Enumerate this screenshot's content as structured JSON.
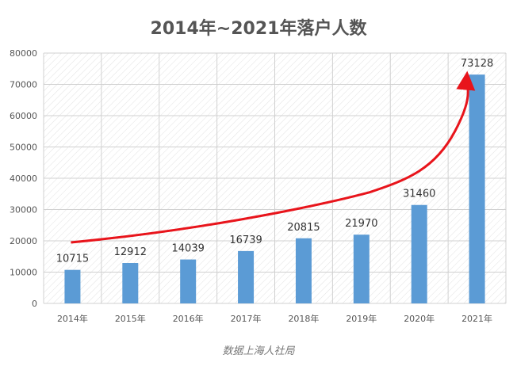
{
  "chart_data": {
    "type": "bar",
    "title": "2014年~2021年落户人数",
    "categories": [
      "2014年",
      "2015年",
      "2016年",
      "2017年",
      "2018年",
      "2019年",
      "2020年",
      "2021年"
    ],
    "values": [
      10715,
      12912,
      14039,
      16739,
      20815,
      21970,
      31460,
      73128
    ],
    "ylim": [
      0,
      80000
    ],
    "yticks": [
      0,
      10000,
      20000,
      30000,
      40000,
      50000,
      60000,
      70000,
      80000
    ],
    "grid": true,
    "legend": "none",
    "annotation": "red upward trend arrow",
    "colors": {
      "bar": "#5b9bd5",
      "trend_arrow": "#e8141b",
      "grid": "#d0d0d0"
    }
  },
  "source": "数据上海人社局"
}
